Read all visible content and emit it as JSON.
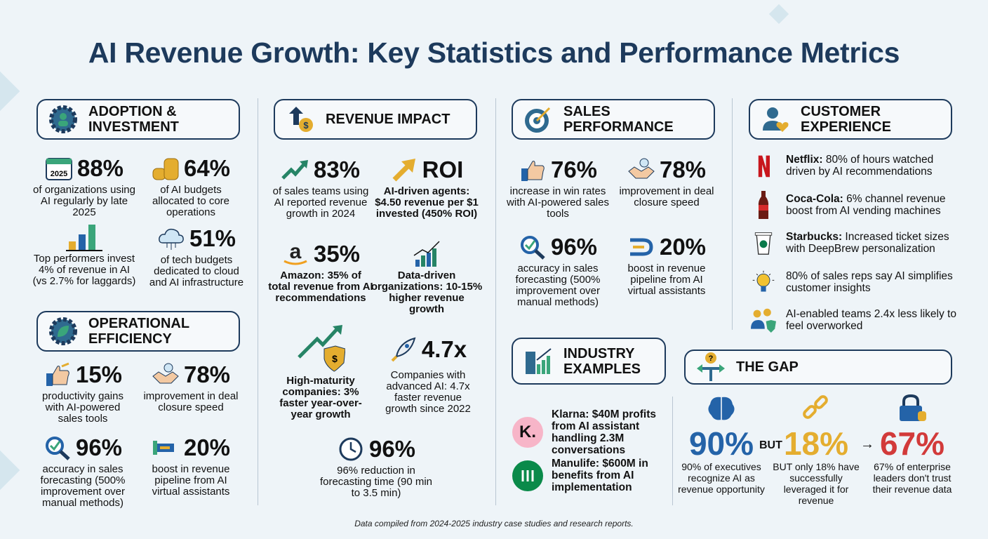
{
  "title": "AI Revenue Growth: Key Statistics and Performance Metrics",
  "sections": {
    "adoption": {
      "title": "Adoption & Investment",
      "stats": [
        {
          "value": "88%",
          "desc": "of organizations using AI regularly by late 2025",
          "icon": "calendar-2025-icon",
          "icon_text": "2025"
        },
        {
          "value": "64%",
          "desc": "of AI budgets allocated to core operations",
          "icon": "coins-icon"
        },
        {
          "value": "",
          "desc": "Top performers invest 4% of revenue in AI (vs 2.7% for laggards)",
          "icon": "bar-chart-icon"
        },
        {
          "value": "51%",
          "desc": "of tech budgets dedicated to cloud and AI infrastructure",
          "icon": "cloud-icon"
        }
      ]
    },
    "operational": {
      "title": "Operational Efficiency",
      "stats": [
        {
          "value": "15%",
          "desc": "productivity gains with AI-powered sales tools",
          "icon": "thumbs-up-icon"
        },
        {
          "value": "78%",
          "desc": "improvement in deal closure speed",
          "icon": "handshake-icon"
        },
        {
          "value": "96%",
          "desc": "accuracy in sales forecasting (500% improvement over manual methods)",
          "icon": "magnifier-check-icon"
        },
        {
          "value": "20%",
          "desc": "boost in revenue pipeline from AI virtual assistants",
          "icon": "pipeline-icon"
        }
      ]
    },
    "revenue": {
      "title": "Revenue Impact",
      "stats": [
        {
          "value": "83%",
          "desc": "of sales teams using AI reported revenue growth in 2024",
          "icon": "trend-up-icon"
        },
        {
          "value": "ROI",
          "desc": "AI-driven agents: $4.50 revenue per $1 invested (450% ROI)",
          "icon": "arrow-up-icon"
        },
        {
          "value": "35%",
          "desc": "Amazon: 35% of total revenue from AI recommendations",
          "icon": "amazon-logo-icon"
        },
        {
          "value": "",
          "desc": "Data-driven organizations: 10-15% higher revenue growth",
          "icon": "growth-chart-icon"
        },
        {
          "value": "",
          "desc": "High-maturity companies: 3% faster year-over-year growth",
          "icon": "shield-dollar-icon"
        },
        {
          "value": "4.7x",
          "desc": "Companies with advanced AI: 4.7x faster revenue growth since 2022",
          "icon": "rocket-icon"
        },
        {
          "value": "96%",
          "desc": "96% reduction in forecasting time (90 min to 3.5 min)",
          "icon": "clock-icon"
        }
      ]
    },
    "sales": {
      "title": "Sales Performance",
      "stats": [
        {
          "value": "76%",
          "desc": "increase in win rates with AI-powered sales tools",
          "icon": "thumbs-up-icon"
        },
        {
          "value": "78%",
          "desc": "improvement in deal closure speed",
          "icon": "handshake-icon"
        },
        {
          "value": "96%",
          "desc": "accuracy in sales forecasting (500% improvement over manual methods)",
          "icon": "magnifier-check-icon"
        },
        {
          "value": "20%",
          "desc": "boost in revenue pipeline from AI virtual assistants",
          "icon": "pipeline-icon"
        }
      ]
    },
    "customer": {
      "title": "Customer Experience",
      "items": [
        {
          "brand": "Netflix:",
          "text": " 80% of hours watched driven by AI recommendations",
          "icon": "netflix-logo-icon"
        },
        {
          "brand": "Coca-Cola:",
          "text": " 6% channel revenue boost from AI vending machines",
          "icon": "coke-bottle-icon"
        },
        {
          "brand": "Starbucks:",
          "text": " Increased ticket sizes with DeepBrew personalization",
          "icon": "coffee-cup-icon"
        },
        {
          "brand": "",
          "text": "80% of sales reps say AI simplifies customer insights",
          "icon": "lightbulb-icon"
        },
        {
          "brand": "",
          "text": "AI-enabled teams 2.4x less likely to feel overworked",
          "icon": "team-shield-icon"
        }
      ]
    },
    "industry": {
      "title": "Industry Examples",
      "items": [
        {
          "logo": "K.",
          "text": "Klarna: $40M profits from AI assistant handling 2.3M conversations",
          "color": "#f7b5c8"
        },
        {
          "logo": "",
          "text": "Manulife: $600M in benefits from AI implementation",
          "color": "#0a8a4a"
        }
      ]
    },
    "gap": {
      "title": "The Gap",
      "but": "BUT",
      "stats": [
        {
          "value": "90%",
          "desc": "90% of executives recognize AI as revenue opportunity",
          "color": "#2463a8",
          "icon": "brain-icon"
        },
        {
          "value": "18%",
          "desc": "BUT only 18% have successfully leveraged it for revenue",
          "color": "#e4ad2f",
          "icon": "broken-chain-icon"
        },
        {
          "value": "67%",
          "desc": "67% of enterprise leaders don't trust their revenue data",
          "color": "#d23a3a",
          "icon": "lock-coins-icon"
        }
      ]
    }
  },
  "footer": "Data compiled from 2024-2025 industry case studies and research reports."
}
